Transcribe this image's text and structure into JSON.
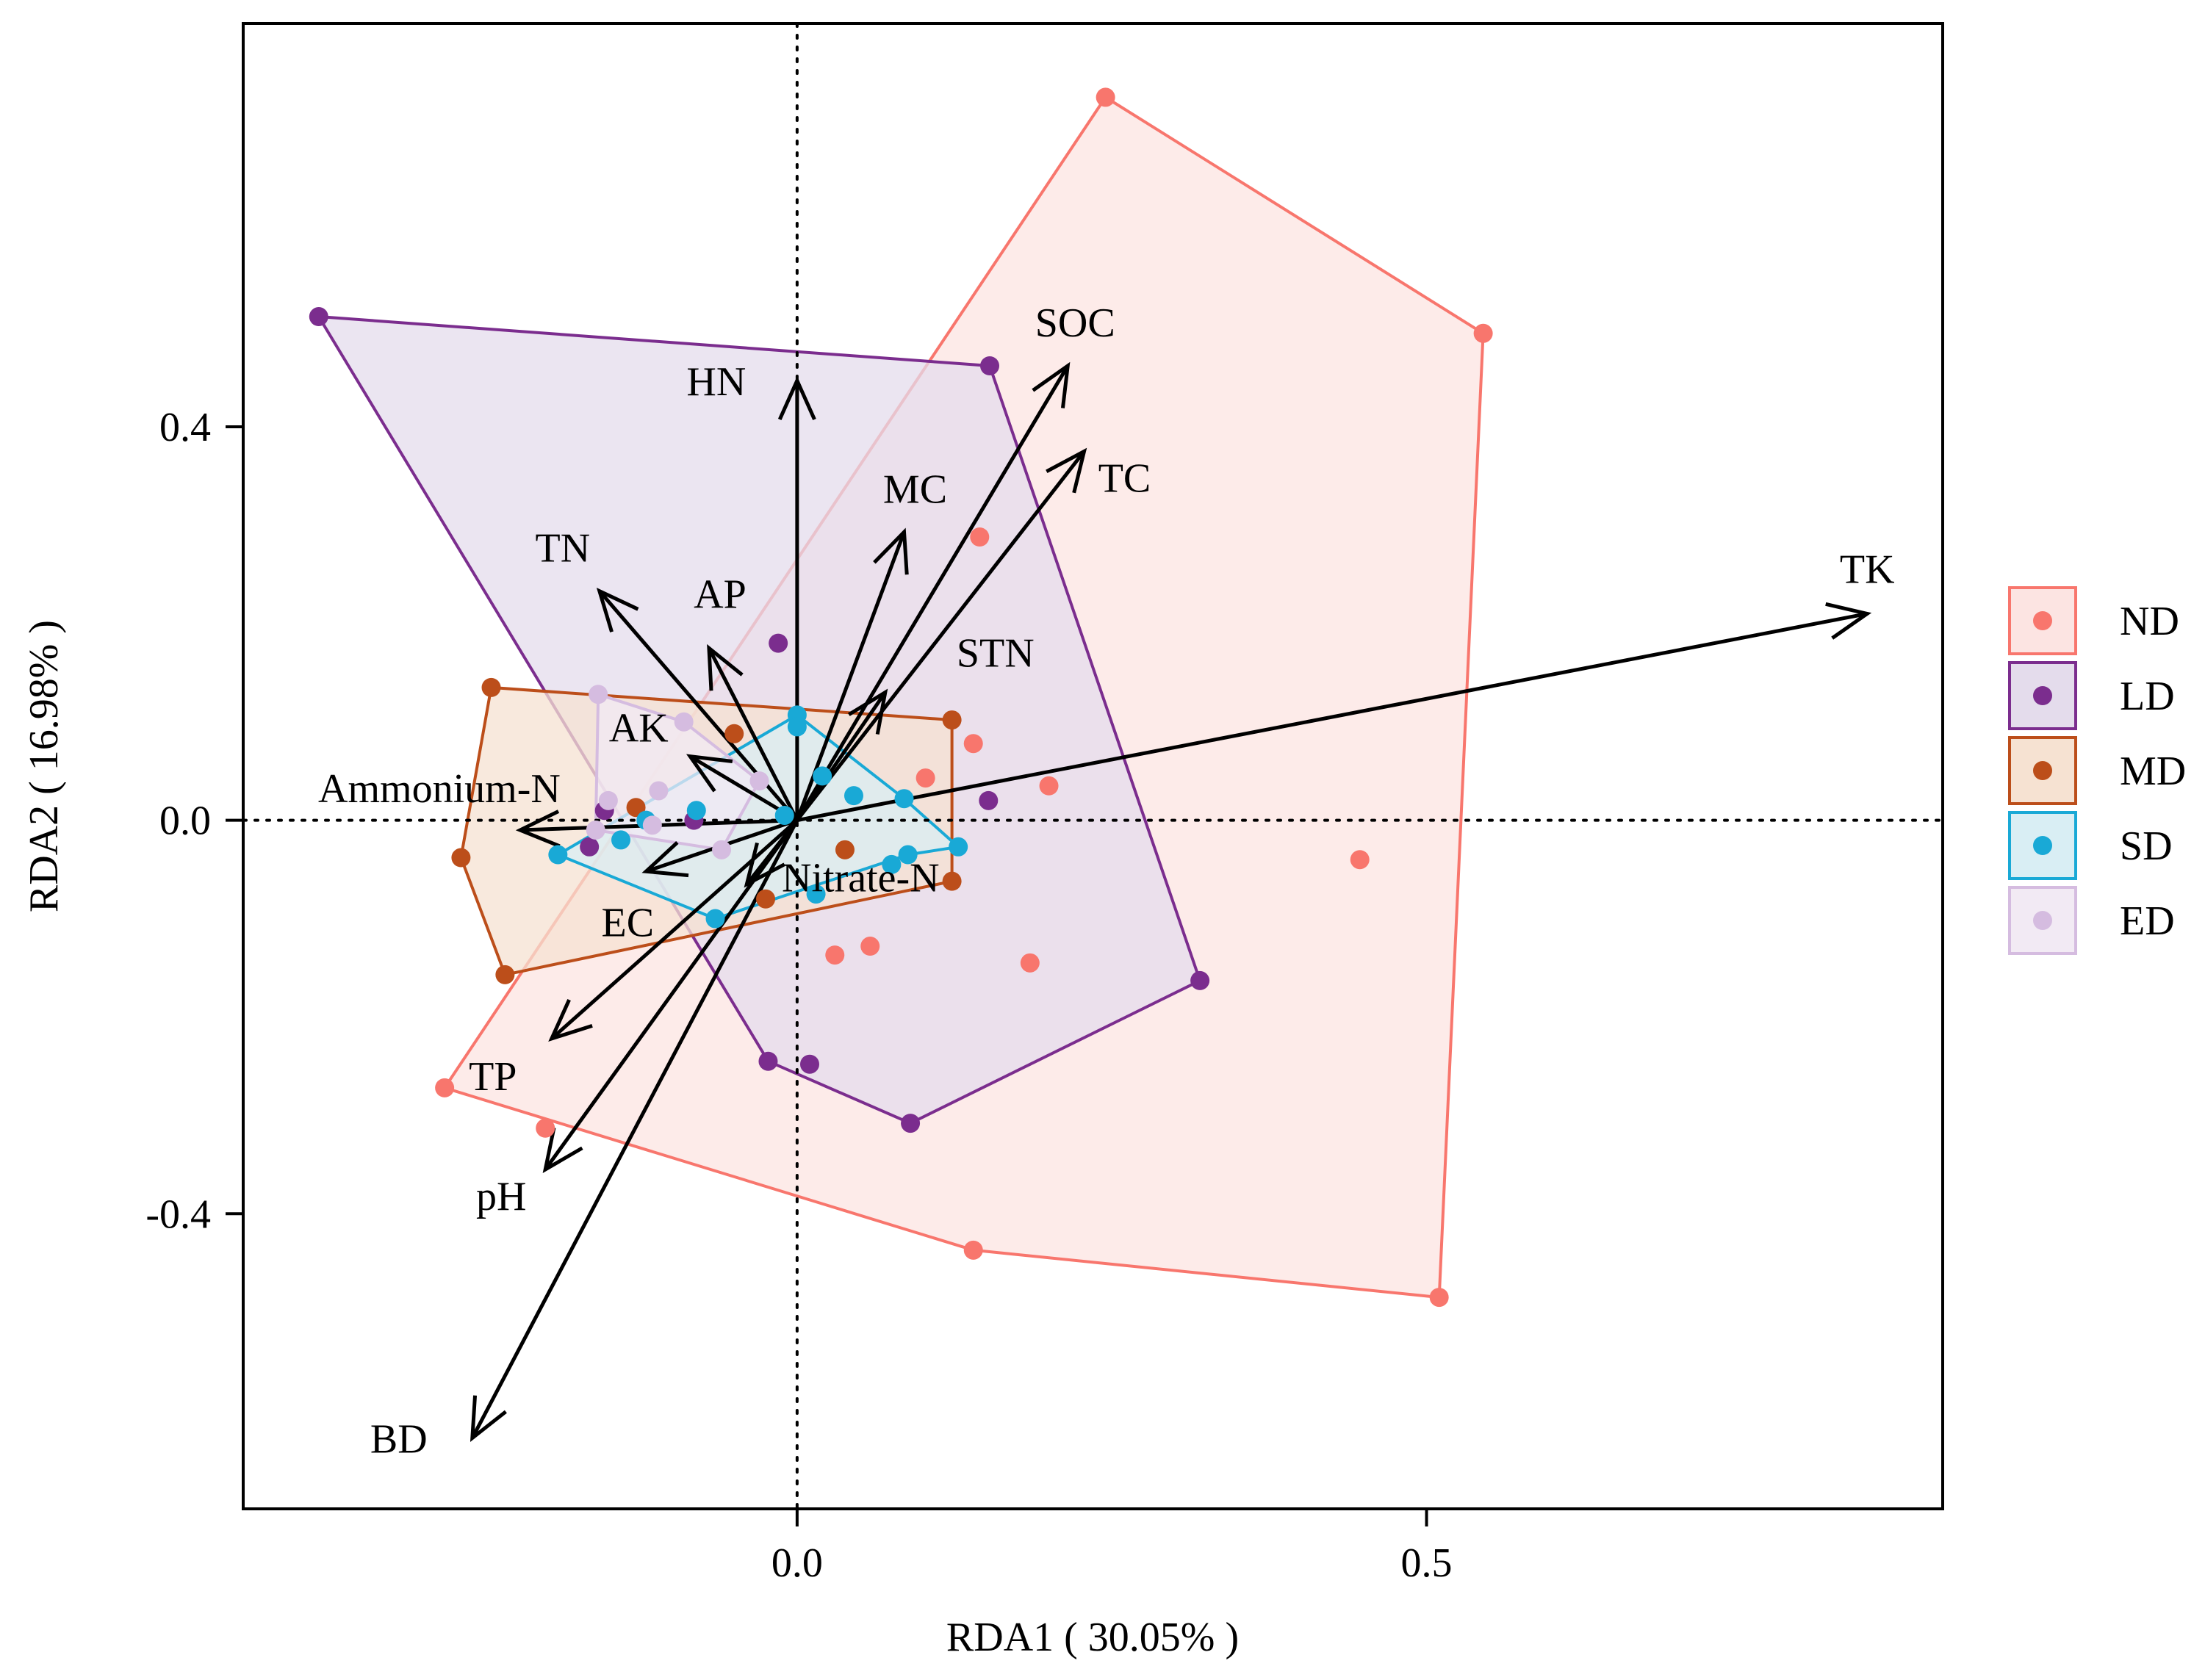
{
  "chart_data": {
    "type": "scatter",
    "subtype": "RDA biplot",
    "title": "",
    "xlabel": "RDA1 ( 30.05% )",
    "ylabel": "RDA2 ( 16.98% )",
    "xlim": [
      -0.44,
      0.91
    ],
    "ylim": [
      -0.7,
      0.81
    ],
    "x_ticks": [
      {
        "value": 0.0,
        "label": "0.0"
      },
      {
        "value": 0.5,
        "label": "0.5"
      }
    ],
    "y_ticks": [
      {
        "value": 0.4,
        "label": "0.4"
      },
      {
        "value": 0.0,
        "label": "0.0"
      },
      {
        "value": -0.4,
        "label": "-0.4"
      }
    ],
    "reference_lines": {
      "x": 0,
      "y": 0,
      "style": "dotted"
    },
    "legend_position": "right",
    "groups": [
      {
        "name": "ND",
        "color": "#F8766D",
        "fill": "#FCE4E2",
        "hull": [
          [
            0.245,
            0.735
          ],
          [
            0.545,
            0.495
          ],
          [
            0.51,
            -0.485
          ],
          [
            0.14,
            -0.437
          ],
          [
            -0.28,
            -0.272
          ]
        ],
        "points": [
          [
            0.245,
            0.735
          ],
          [
            0.545,
            0.495
          ],
          [
            0.51,
            -0.485
          ],
          [
            0.14,
            -0.437
          ],
          [
            -0.28,
            -0.272
          ],
          [
            -0.2,
            -0.313
          ],
          [
            0.145,
            0.288
          ],
          [
            0.14,
            0.078
          ],
          [
            0.102,
            0.043
          ],
          [
            0.2,
            0.035
          ],
          [
            0.447,
            -0.04
          ],
          [
            0.185,
            -0.145
          ],
          [
            0.03,
            -0.137
          ],
          [
            0.058,
            -0.128
          ]
        ]
      },
      {
        "name": "LD",
        "color": "#7B2D8E",
        "fill": "#E4DCEC",
        "hull": [
          [
            -0.38,
            0.512
          ],
          [
            0.153,
            0.462
          ],
          [
            0.32,
            -0.163
          ],
          [
            0.09,
            -0.308
          ],
          [
            -0.023,
            -0.245
          ]
        ],
        "points": [
          [
            -0.38,
            0.512
          ],
          [
            0.153,
            0.462
          ],
          [
            0.32,
            -0.163
          ],
          [
            0.09,
            -0.308
          ],
          [
            -0.023,
            -0.245
          ],
          [
            0.01,
            -0.248
          ],
          [
            -0.015,
            0.18
          ],
          [
            0.152,
            0.02
          ],
          [
            -0.153,
            0.01
          ],
          [
            -0.165,
            -0.027
          ],
          [
            -0.082,
            0.0
          ]
        ]
      },
      {
        "name": "MD",
        "color": "#BC4E1A",
        "fill": "#F6E2D2",
        "hull": [
          [
            -0.243,
            0.135
          ],
          [
            0.123,
            0.102
          ],
          [
            0.123,
            -0.062
          ],
          [
            -0.232,
            -0.157
          ],
          [
            -0.267,
            -0.038
          ]
        ],
        "points": [
          [
            -0.243,
            0.135
          ],
          [
            0.123,
            0.102
          ],
          [
            0.123,
            -0.062
          ],
          [
            -0.232,
            -0.157
          ],
          [
            -0.267,
            -0.038
          ],
          [
            -0.05,
            0.088
          ],
          [
            0.038,
            -0.03
          ],
          [
            -0.025,
            -0.08
          ],
          [
            -0.128,
            0.013
          ]
        ]
      },
      {
        "name": "SD",
        "color": "#19A9D6",
        "fill": "#D9EEF4",
        "hull": [
          [
            0.0,
            0.107
          ],
          [
            0.085,
            0.022
          ],
          [
            0.128,
            -0.027
          ],
          [
            0.088,
            -0.035
          ],
          [
            -0.065,
            -0.1
          ],
          [
            -0.19,
            -0.035
          ]
        ],
        "points": [
          [
            0.0,
            0.107
          ],
          [
            0.085,
            0.022
          ],
          [
            0.128,
            -0.027
          ],
          [
            0.088,
            -0.035
          ],
          [
            -0.065,
            -0.1
          ],
          [
            -0.19,
            -0.035
          ],
          [
            0.0,
            0.095
          ],
          [
            0.045,
            0.025
          ],
          [
            0.02,
            0.045
          ],
          [
            -0.01,
            0.005
          ],
          [
            0.075,
            -0.045
          ],
          [
            0.015,
            -0.075
          ],
          [
            -0.08,
            0.01
          ],
          [
            -0.12,
            0.0
          ],
          [
            -0.14,
            -0.02
          ]
        ]
      },
      {
        "name": "ED",
        "color": "#D5BCE0",
        "fill": "#F2EAF4",
        "hull": [
          [
            -0.158,
            0.128
          ],
          [
            -0.09,
            0.1
          ],
          [
            -0.03,
            0.04
          ],
          [
            -0.06,
            -0.03
          ],
          [
            -0.16,
            -0.01
          ]
        ],
        "points": [
          [
            -0.158,
            0.128
          ],
          [
            -0.09,
            0.1
          ],
          [
            -0.03,
            0.04
          ],
          [
            -0.06,
            -0.03
          ],
          [
            -0.16,
            -0.01
          ],
          [
            -0.11,
            0.03
          ],
          [
            -0.15,
            0.02
          ],
          [
            -0.115,
            -0.005
          ]
        ]
      }
    ],
    "vectors": [
      {
        "name": "TK",
        "x": 0.85,
        "y": 0.21
      },
      {
        "name": "SOC",
        "x": 0.215,
        "y": 0.462
      },
      {
        "name": "TC",
        "x": 0.228,
        "y": 0.375
      },
      {
        "name": "HN",
        "x": 0.0,
        "y": 0.447
      },
      {
        "name": "MC",
        "x": 0.085,
        "y": 0.293
      },
      {
        "name": "TN",
        "x": -0.157,
        "y": 0.233
      },
      {
        "name": "AP",
        "x": -0.07,
        "y": 0.175
      },
      {
        "name": "STN",
        "x": 0.07,
        "y": 0.13
      },
      {
        "name": "AK",
        "x": -0.085,
        "y": 0.065
      },
      {
        "name": "Ammonium-N",
        "x": -0.22,
        "y": -0.01
      },
      {
        "name": "EC",
        "x": -0.12,
        "y": -0.052
      },
      {
        "name": "Nitrate-N",
        "x": -0.04,
        "y": -0.065
      },
      {
        "name": "TP",
        "x": -0.195,
        "y": -0.222
      },
      {
        "name": "pH",
        "x": -0.2,
        "y": -0.355
      },
      {
        "name": "BD",
        "x": -0.258,
        "y": -0.628
      }
    ]
  }
}
